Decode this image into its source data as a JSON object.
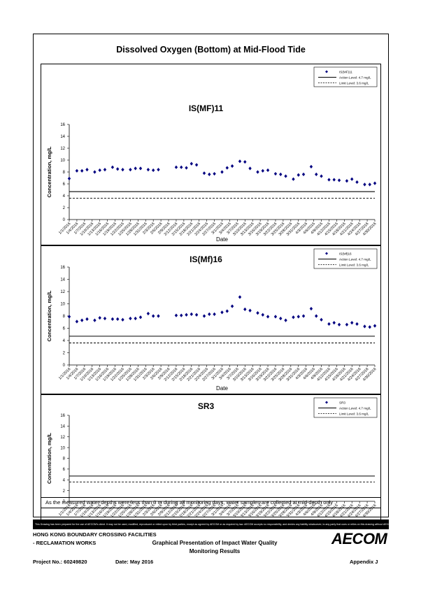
{
  "main_title": "Dissolved Oxygen (Bottom) at Mid-Flood Tide",
  "note": "As the measured water depths were less than 3 m during all monitoring days, water samples are collected  at mid-depth only .",
  "disclaimer": "This Drawing has been prepared for the use of AECOM's client. It may not be used, modified, reproduced or relied upon by third parties, except as agreed by AECOM or as required by law. AECOM accepts no responsibility, and denies any liability whatsoever, to any party that uses or relies on this drawing without AECOM's express written consent.",
  "footer": {
    "project_name_1": "HONG KONG BOUNDARY CROSSING FACILITIES",
    "project_name_2": "- RECLAMATION WORKS",
    "drawing_title_1": "Graphical Presentation of Impact Water Quality",
    "drawing_title_2": "Monitoring Results",
    "project_no": "Project No.: 60249820",
    "date": "Date: May 2016",
    "appendix": "Appendix J",
    "logo": "AECOM"
  },
  "chart_data": [
    {
      "type": "scatter",
      "title": "IS(MF)11",
      "xlabel": "Date",
      "ylabel": "Concentration, mg/L",
      "ylim": [
        0,
        16
      ],
      "yticks": [
        0,
        2,
        4,
        6,
        8,
        10,
        12,
        14,
        16
      ],
      "xticklabels": [
        "1/1/2016",
        "1/4/2016",
        "1/7/2016",
        "1/10/2016",
        "1/13/2016",
        "1/16/2016",
        "1/19/2016",
        "1/22/2016",
        "1/25/2016",
        "1/28/2016",
        "1/31/2016",
        "2/3/2016",
        "2/6/2016",
        "2/9/2016",
        "2/12/2016",
        "2/15/2016",
        "2/18/2016",
        "2/21/2016",
        "2/24/2016",
        "2/27/2016",
        "3/1/2016",
        "3/4/2016",
        "3/7/2016",
        "3/10/2016",
        "3/13/2016",
        "3/16/2016",
        "3/19/2016",
        "3/22/2016",
        "3/25/2016",
        "3/28/2016",
        "3/31/2016",
        "4/3/2016",
        "4/6/2016",
        "4/9/2016",
        "4/12/2016",
        "4/15/2016",
        "4/18/2016",
        "4/21/2016",
        "4/24/2016",
        "4/27/2016",
        "4/30/2016"
      ],
      "series": [
        {
          "name": "IS(MF)11",
          "color": "#000080",
          "points": [
            [
              "1/1/2016",
              6.9
            ],
            [
              "1/4/2016",
              8.2
            ],
            [
              "1/6/2016",
              8.2
            ],
            [
              "1/8/2016",
              8.4
            ],
            [
              "1/11/2016",
              8.0
            ],
            [
              "1/13/2016",
              8.3
            ],
            [
              "1/15/2016",
              8.4
            ],
            [
              "1/18/2016",
              8.8
            ],
            [
              "1/20/2016",
              8.5
            ],
            [
              "1/22/2016",
              8.4
            ],
            [
              "1/25/2016",
              8.4
            ],
            [
              "1/27/2016",
              8.6
            ],
            [
              "1/29/2016",
              8.6
            ],
            [
              "2/1/2016",
              8.4
            ],
            [
              "2/3/2016",
              8.3
            ],
            [
              "2/5/2016",
              8.4
            ],
            [
              "2/12/2016",
              8.8
            ],
            [
              "2/14/2016",
              8.8
            ],
            [
              "2/16/2016",
              8.7
            ],
            [
              "2/18/2016",
              9.4
            ],
            [
              "2/20/2016",
              9.2
            ],
            [
              "2/23/2016",
              7.8
            ],
            [
              "2/25/2016",
              7.6
            ],
            [
              "2/27/2016",
              7.7
            ],
            [
              "3/1/2016",
              8.0
            ],
            [
              "3/3/2016",
              8.7
            ],
            [
              "3/5/2016",
              9.0
            ],
            [
              "3/8/2016",
              9.8
            ],
            [
              "3/10/2016",
              9.7
            ],
            [
              "3/12/2016",
              8.6
            ],
            [
              "3/15/2016",
              8.0
            ],
            [
              "3/17/2016",
              8.2
            ],
            [
              "3/19/2016",
              8.3
            ],
            [
              "3/22/2016",
              7.7
            ],
            [
              "3/24/2016",
              7.6
            ],
            [
              "3/26/2016",
              7.3
            ],
            [
              "3/29/2016",
              6.8
            ],
            [
              "3/31/2016",
              7.5
            ],
            [
              "4/2/2016",
              7.6
            ],
            [
              "4/5/2016",
              8.9
            ],
            [
              "4/7/2016",
              7.6
            ],
            [
              "4/9/2016",
              7.3
            ],
            [
              "4/12/2016",
              6.7
            ],
            [
              "4/14/2016",
              6.7
            ],
            [
              "4/16/2016",
              6.6
            ],
            [
              "4/19/2016",
              6.5
            ],
            [
              "4/21/2016",
              6.8
            ],
            [
              "4/23/2016",
              6.3
            ],
            [
              "4/26/2016",
              5.9
            ],
            [
              "4/28/2016",
              5.9
            ],
            [
              "4/30/2016",
              6.1
            ]
          ]
        }
      ],
      "action_level": 4.7,
      "limit_level": 3.6,
      "legend": {
        "position": "top-right",
        "entries": [
          "IS(MF)11",
          "Action Level: 4.7 mg/L",
          "Limit Level: 3.6 mg/L"
        ]
      }
    },
    {
      "type": "scatter",
      "title": "IS(Mf)16",
      "xlabel": "Date",
      "ylabel": "Concentration, mg/L",
      "ylim": [
        0,
        16
      ],
      "yticks": [
        0,
        2,
        4,
        6,
        8,
        10,
        12,
        14,
        16
      ],
      "xticklabels": [
        "1/1/2016",
        "1/4/2016",
        "1/7/2016",
        "1/10/2016",
        "1/13/2016",
        "1/16/2016",
        "1/19/2016",
        "1/22/2016",
        "1/25/2016",
        "1/28/2016",
        "1/31/2016",
        "2/3/2016",
        "2/6/2016",
        "2/9/2016",
        "2/12/2016",
        "2/15/2016",
        "2/18/2016",
        "2/21/2016",
        "2/24/2016",
        "2/27/2016",
        "3/1/2016",
        "3/4/2016",
        "3/7/2016",
        "3/10/2016",
        "3/13/2016",
        "3/16/2016",
        "3/19/2016",
        "3/22/2016",
        "3/25/2016",
        "3/28/2016",
        "3/31/2016",
        "4/3/2016",
        "4/6/2016",
        "4/9/2016",
        "4/12/2016",
        "4/15/2016",
        "4/18/2016",
        "4/21/2016",
        "4/24/2016",
        "4/27/2016",
        "4/30/2016"
      ],
      "series": [
        {
          "name": "IS(Mf)16",
          "color": "#000080",
          "points": [
            [
              "1/1/2016",
              7.9
            ],
            [
              "1/4/2016",
              7.1
            ],
            [
              "1/6/2016",
              7.3
            ],
            [
              "1/8/2016",
              7.5
            ],
            [
              "1/11/2016",
              7.3
            ],
            [
              "1/13/2016",
              7.7
            ],
            [
              "1/15/2016",
              7.6
            ],
            [
              "1/18/2016",
              7.5
            ],
            [
              "1/20/2016",
              7.5
            ],
            [
              "1/22/2016",
              7.4
            ],
            [
              "1/25/2016",
              7.6
            ],
            [
              "1/27/2016",
              7.6
            ],
            [
              "1/29/2016",
              7.8
            ],
            [
              "2/1/2016",
              8.4
            ],
            [
              "2/3/2016",
              8.0
            ],
            [
              "2/5/2016",
              8.0
            ],
            [
              "2/12/2016",
              8.1
            ],
            [
              "2/14/2016",
              8.1
            ],
            [
              "2/16/2016",
              8.2
            ],
            [
              "2/18/2016",
              8.3
            ],
            [
              "2/20/2016",
              8.2
            ],
            [
              "2/23/2016",
              8.0
            ],
            [
              "2/25/2016",
              8.3
            ],
            [
              "2/27/2016",
              8.3
            ],
            [
              "3/1/2016",
              8.6
            ],
            [
              "3/3/2016",
              8.8
            ],
            [
              "3/5/2016",
              9.6
            ],
            [
              "3/8/2016",
              11.1
            ],
            [
              "3/10/2016",
              9.1
            ],
            [
              "3/12/2016",
              8.9
            ],
            [
              "3/15/2016",
              8.5
            ],
            [
              "3/17/2016",
              8.2
            ],
            [
              "3/19/2016",
              7.9
            ],
            [
              "3/22/2016",
              7.9
            ],
            [
              "3/24/2016",
              7.6
            ],
            [
              "3/26/2016",
              7.3
            ],
            [
              "3/29/2016",
              7.8
            ],
            [
              "3/31/2016",
              7.9
            ],
            [
              "4/2/2016",
              8.0
            ],
            [
              "4/5/2016",
              9.2
            ],
            [
              "4/7/2016",
              8.0
            ],
            [
              "4/9/2016",
              7.4
            ],
            [
              "4/12/2016",
              6.7
            ],
            [
              "4/14/2016",
              6.9
            ],
            [
              "4/16/2016",
              6.6
            ],
            [
              "4/19/2016",
              6.6
            ],
            [
              "4/21/2016",
              6.9
            ],
            [
              "4/23/2016",
              6.7
            ],
            [
              "4/26/2016",
              6.3
            ],
            [
              "4/28/2016",
              6.2
            ],
            [
              "4/30/2016",
              6.4
            ]
          ]
        }
      ],
      "action_level": 4.7,
      "limit_level": 3.6,
      "legend": {
        "position": "top-right",
        "entries": [
          "IS(Mf)16",
          "Action Level: 4.7 mg/L",
          "Limit Level: 3.6 mg/L"
        ]
      }
    },
    {
      "type": "scatter",
      "title": "SR3",
      "xlabel": "Date",
      "ylabel": "Concentration, mg/L",
      "ylim": [
        0,
        16
      ],
      "yticks": [
        0,
        2,
        4,
        6,
        8,
        10,
        12,
        14,
        16
      ],
      "xticklabels": [
        "1/1/2016",
        "1/4/2016",
        "1/7/2016",
        "1/10/2016",
        "1/13/2016",
        "1/16/2016",
        "1/19/2016",
        "1/22/2016",
        "1/25/2016",
        "1/28/2016",
        "1/31/2016",
        "2/3/2016",
        "2/6/2016",
        "2/9/2016",
        "2/12/2016",
        "2/15/2016",
        "2/18/2016",
        "2/21/2016",
        "2/24/2016",
        "2/27/2016",
        "3/1/2016",
        "3/4/2016",
        "3/7/2016",
        "3/10/2016",
        "3/13/2016",
        "3/16/2016",
        "3/19/2016",
        "3/22/2016",
        "3/25/2016",
        "3/28/2016",
        "3/31/2016",
        "4/3/2016",
        "4/6/2016",
        "4/9/2016",
        "4/12/2016",
        "4/15/2016",
        "4/18/2016",
        "4/21/2016",
        "4/24/2016",
        "4/27/2016",
        "4/30/2016"
      ],
      "series": [
        {
          "name": "SR3",
          "color": "#000080",
          "points": []
        }
      ],
      "action_level": 4.7,
      "limit_level": 3.6,
      "legend": {
        "position": "top-right",
        "entries": [
          "SR3",
          "Action Level: 4.7 mg/L",
          "Limit Level: 3.6 mg/L"
        ]
      }
    }
  ]
}
